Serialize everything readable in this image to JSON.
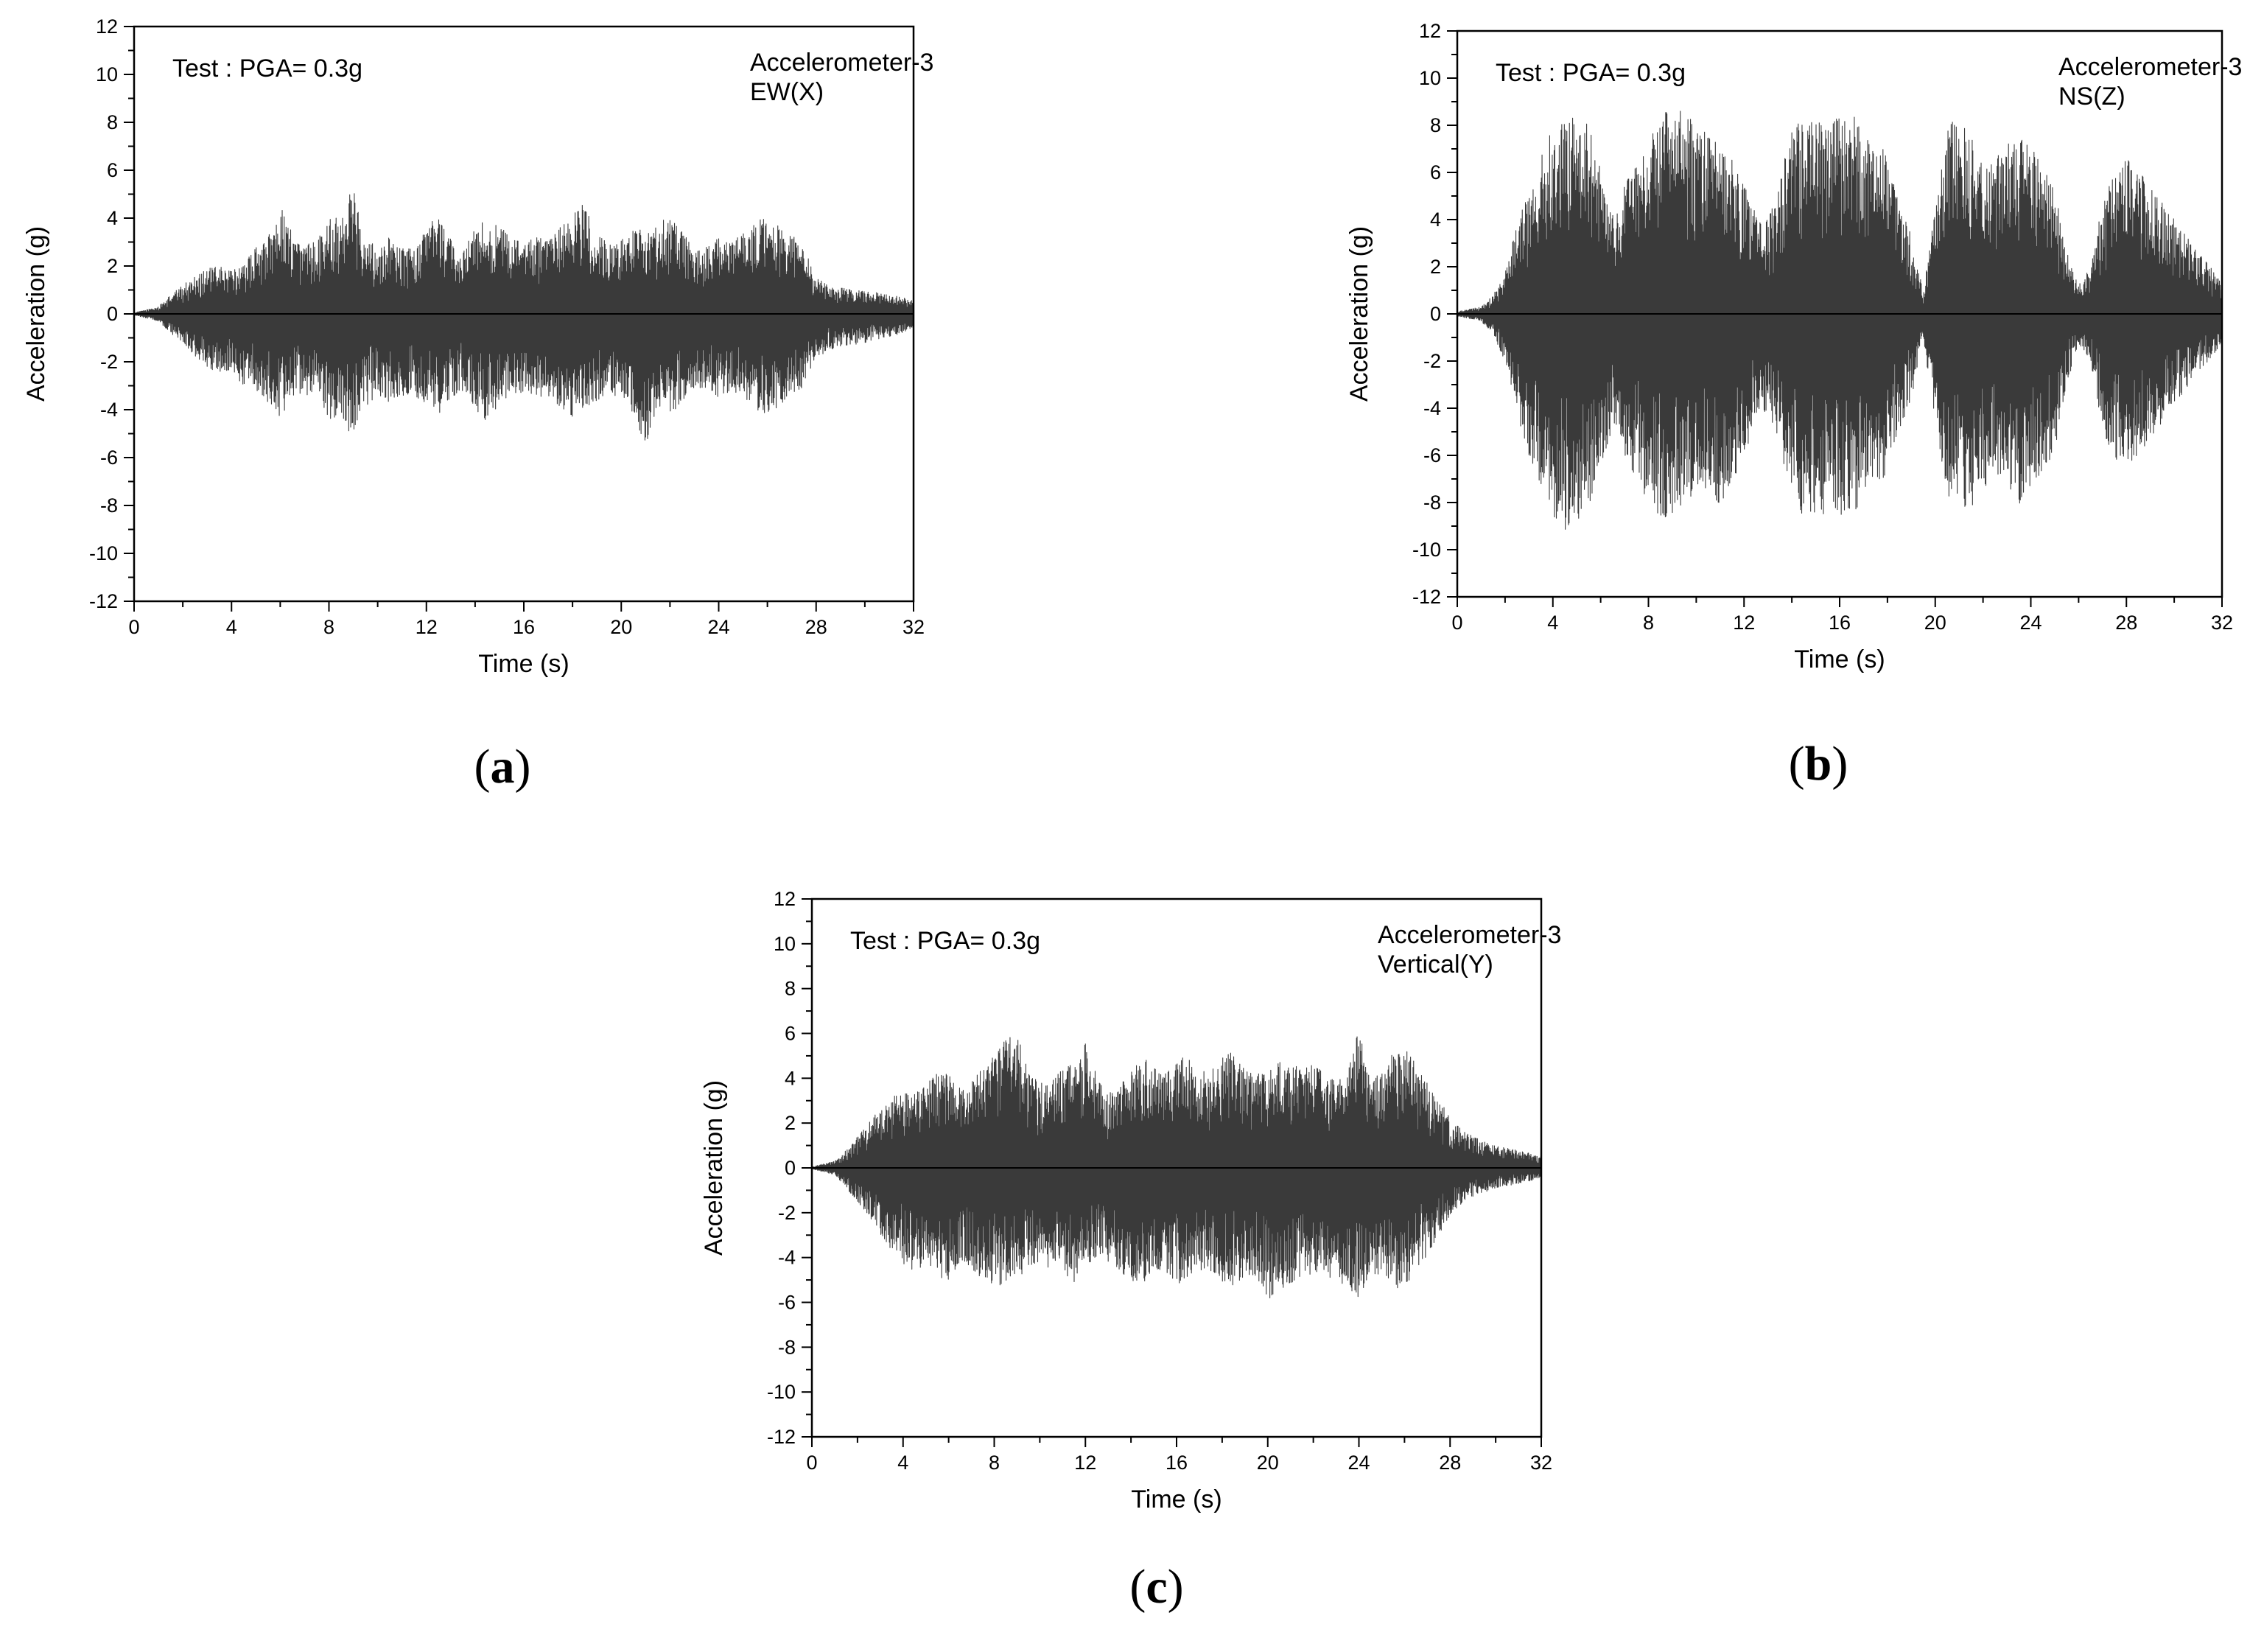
{
  "chart_data": [
    {
      "type": "line",
      "panel_label": "a",
      "annotation_left": "Test : PGA= 0.3g",
      "annotation_right": [
        "Accelerometer-3",
        "EW(X)"
      ],
      "xlabel": "Time (s)",
      "ylabel": "Acceleration (g)",
      "xlim": [
        0,
        32
      ],
      "ylim": [
        -12,
        12
      ],
      "xticks": [
        0,
        4,
        8,
        12,
        16,
        20,
        24,
        28,
        32
      ],
      "yticks": [
        -12,
        -10,
        -8,
        -6,
        -4,
        -2,
        0,
        2,
        4,
        6,
        8,
        10,
        12
      ],
      "grid": false,
      "series": [
        {
          "envelope": {
            "t": [
              0,
              1,
              1.5,
              2,
              2.5,
              3,
              3.5,
              4,
              4.5,
              5,
              5.5,
              6,
              6.5,
              7,
              7.5,
              8,
              8.5,
              9,
              9.5,
              10,
              10.5,
              11,
              11.5,
              12,
              12.5,
              13,
              13.5,
              14,
              14.5,
              15,
              15.5,
              16,
              16.5,
              17,
              17.5,
              18,
              18.5,
              19,
              19.5,
              20,
              20.5,
              21,
              21.5,
              22,
              22.5,
              23,
              23.5,
              24,
              24.5,
              25,
              25.5,
              26,
              26.5,
              27,
              27.5,
              28,
              28.5,
              29,
              29.5,
              30,
              30.5,
              31,
              31.5,
              32
            ],
            "upper": [
              0.05,
              0.3,
              0.8,
              1.2,
              1.6,
              1.9,
              2.0,
              1.8,
              2.1,
              2.8,
              3.2,
              4.6,
              3.4,
              2.8,
              3.3,
              4.0,
              4.4,
              5.4,
              3.3,
              2.7,
              3.3,
              2.8,
              2.7,
              3.6,
              4.2,
              3.1,
              2.6,
              3.6,
              4.2,
              3.7,
              3.2,
              2.9,
              3.3,
              3.0,
              3.7,
              4.3,
              4.6,
              3.3,
              3.0,
              3.1,
              3.6,
              3.5,
              3.7,
              4.2,
              3.5,
              2.6,
              2.8,
              3.3,
              2.9,
              3.6,
              4.0,
              4.2,
              3.6,
              3.3,
              2.8,
              1.5,
              1.2,
              1.1,
              1.0,
              0.95,
              0.9,
              0.8,
              0.7,
              0.55
            ],
            "lower": [
              -0.05,
              -0.3,
              -0.8,
              -1.3,
              -1.8,
              -2.2,
              -2.5,
              -2.7,
              -3.0,
              -3.3,
              -3.7,
              -4.3,
              -3.6,
              -3.3,
              -3.8,
              -4.4,
              -4.8,
              -5.0,
              -3.9,
              -3.4,
              -3.7,
              -3.5,
              -3.5,
              -3.8,
              -4.3,
              -3.5,
              -3.2,
              -4.0,
              -4.6,
              -3.7,
              -3.4,
              -3.3,
              -3.6,
              -3.5,
              -4.0,
              -4.3,
              -4.3,
              -3.6,
              -3.4,
              -3.6,
              -4.2,
              -5.5,
              -4.0,
              -4.1,
              -3.9,
              -3.2,
              -3.1,
              -3.5,
              -3.2,
              -3.4,
              -4.0,
              -4.3,
              -3.8,
              -3.5,
              -3.0,
              -1.9,
              -1.5,
              -1.4,
              -1.3,
              -1.2,
              -1.1,
              -1.0,
              -0.8,
              -0.6
            ]
          }
        }
      ]
    },
    {
      "type": "line",
      "panel_label": "b",
      "annotation_left": "Test : PGA= 0.3g",
      "annotation_right": [
        "Accelerometer-3",
        "NS(Z)"
      ],
      "xlabel": "Time (s)",
      "ylabel": "Acceleration (g)",
      "xlim": [
        0,
        32
      ],
      "ylim": [
        -12,
        12
      ],
      "xticks": [
        0,
        4,
        8,
        12,
        16,
        20,
        24,
        28,
        32
      ],
      "yticks": [
        -12,
        -10,
        -8,
        -6,
        -4,
        -2,
        0,
        2,
        4,
        6,
        8,
        10,
        12
      ],
      "grid": false,
      "series": [
        {
          "envelope": {
            "t": [
              0,
              1,
              1.5,
              2,
              2.5,
              3,
              3.5,
              4,
              4.5,
              5,
              5.5,
              6,
              6.5,
              7,
              7.5,
              8,
              8.5,
              9,
              9.5,
              10,
              10.5,
              11,
              11.5,
              12,
              12.5,
              13,
              13.5,
              14,
              14.5,
              15,
              15.5,
              16,
              16.5,
              17,
              17.5,
              18,
              18.5,
              19,
              19.5,
              20,
              20.5,
              21,
              21.5,
              22,
              22.5,
              23,
              23.5,
              24,
              24.5,
              25,
              25.5,
              26,
              26.5,
              27,
              27.5,
              28,
              28.5,
              29,
              29.5,
              30,
              30.5,
              31,
              31.5,
              32
            ],
            "upper": [
              0.1,
              0.3,
              0.8,
              1.8,
              3.8,
              5.2,
              6.8,
              8.0,
              8.2,
              8.4,
              8.0,
              6.2,
              4.2,
              5.5,
              6.4,
              7.6,
              8.1,
              9.1,
              8.5,
              8.2,
              7.6,
              7.1,
              6.6,
              5.6,
              4.2,
              4.0,
              5.5,
              8.2,
              8.3,
              8.2,
              8.0,
              8.4,
              8.6,
              7.5,
              7.3,
              6.8,
              4.5,
              3.4,
              1.0,
              4.6,
              8.0,
              8.4,
              7.5,
              6.2,
              6.5,
              7.3,
              7.9,
              7.1,
              6.2,
              5.3,
              2.8,
              1.3,
              2.0,
              4.7,
              6.0,
              6.6,
              6.1,
              5.5,
              4.8,
              4.0,
              3.3,
              2.6,
              2.0,
              1.4
            ],
            "lower": [
              -0.1,
              -0.3,
              -0.9,
              -2.0,
              -4.3,
              -6.0,
              -7.4,
              -8.6,
              -9.2,
              -8.8,
              -8.2,
              -6.8,
              -5.2,
              -6.0,
              -7.0,
              -8.0,
              -8.7,
              -8.5,
              -8.0,
              -7.6,
              -7.4,
              -8.3,
              -7.2,
              -6.1,
              -4.4,
              -4.1,
              -5.8,
              -7.8,
              -8.6,
              -8.8,
              -8.6,
              -8.5,
              -8.7,
              -7.7,
              -7.3,
              -6.9,
              -5.0,
              -3.6,
              -1.0,
              -4.8,
              -7.9,
              -8.4,
              -8.2,
              -7.4,
              -7.0,
              -7.5,
              -8.1,
              -7.5,
              -6.8,
              -5.8,
              -3.0,
              -1.3,
              -2.0,
              -5.0,
              -6.1,
              -6.5,
              -6.0,
              -5.3,
              -4.6,
              -3.9,
              -3.2,
              -2.5,
              -1.9,
              -1.3
            ]
          }
        }
      ]
    },
    {
      "type": "line",
      "panel_label": "c",
      "annotation_left": "Test : PGA= 0.3g",
      "annotation_right": [
        "Accelerometer-3",
        "Vertical(Y)"
      ],
      "xlabel": "Time (s)",
      "ylabel": "Acceleration (g)",
      "xlim": [
        0,
        32
      ],
      "ylim": [
        -12,
        12
      ],
      "xticks": [
        0,
        4,
        8,
        12,
        16,
        20,
        24,
        28,
        32
      ],
      "yticks": [
        -12,
        -10,
        -8,
        -6,
        -4,
        -2,
        0,
        2,
        4,
        6,
        8,
        10,
        12
      ],
      "grid": false,
      "series": [
        {
          "envelope": {
            "t": [
              0,
              1,
              1.5,
              2,
              2.5,
              3,
              3.5,
              4,
              4.5,
              5,
              5.5,
              6,
              6.5,
              7,
              7.5,
              8,
              8.5,
              9,
              9.5,
              10,
              10.5,
              11,
              11.5,
              12,
              12.5,
              13,
              13.5,
              14,
              14.5,
              15,
              15.5,
              16,
              16.5,
              17,
              17.5,
              18,
              18.5,
              19,
              19.5,
              20,
              20.5,
              21,
              21.5,
              22,
              22.5,
              23,
              23.5,
              24,
              24.5,
              25,
              25.5,
              26,
              26.5,
              27,
              27.5,
              28,
              28.5,
              29,
              29.5,
              30,
              30.5,
              31,
              31.5,
              32
            ],
            "upper": [
              0.05,
              0.3,
              0.8,
              1.4,
              2.0,
              2.7,
              3.2,
              3.3,
              3.4,
              3.7,
              4.3,
              4.4,
              3.7,
              3.9,
              4.5,
              5.0,
              5.8,
              6.1,
              4.3,
              3.8,
              4.1,
              4.4,
              4.7,
              5.7,
              4.1,
              3.4,
              3.7,
              4.4,
              5.5,
              4.6,
              4.2,
              4.8,
              5.0,
              4.3,
              4.4,
              5.0,
              5.3,
              4.4,
              4.2,
              4.5,
              4.7,
              4.8,
              4.4,
              4.6,
              4.2,
              3.9,
              4.3,
              6.2,
              4.0,
              4.2,
              5.2,
              5.5,
              4.6,
              3.8,
              3.2,
              2.3,
              1.7,
              1.4,
              1.2,
              1.0,
              0.9,
              0.8,
              0.65,
              0.5
            ],
            "lower": [
              -0.05,
              -0.3,
              -0.9,
              -1.5,
              -2.2,
              -3.0,
              -3.8,
              -4.3,
              -4.6,
              -4.5,
              -4.9,
              -5.0,
              -4.2,
              -4.6,
              -5.0,
              -5.3,
              -5.2,
              -5.0,
              -4.4,
              -4.2,
              -4.6,
              -4.9,
              -5.1,
              -4.5,
              -4.0,
              -4.2,
              -4.6,
              -5.0,
              -5.3,
              -4.5,
              -4.7,
              -5.2,
              -5.0,
              -4.6,
              -4.6,
              -5.3,
              -5.4,
              -4.8,
              -4.8,
              -5.9,
              -5.5,
              -5.2,
              -4.9,
              -4.7,
              -4.8,
              -5.0,
              -5.3,
              -5.8,
              -4.9,
              -4.7,
              -5.4,
              -5.6,
              -4.5,
              -3.9,
              -3.0,
              -2.1,
              -1.6,
              -1.3,
              -1.1,
              -0.9,
              -0.8,
              -0.7,
              -0.6,
              -0.5
            ]
          }
        }
      ]
    }
  ]
}
